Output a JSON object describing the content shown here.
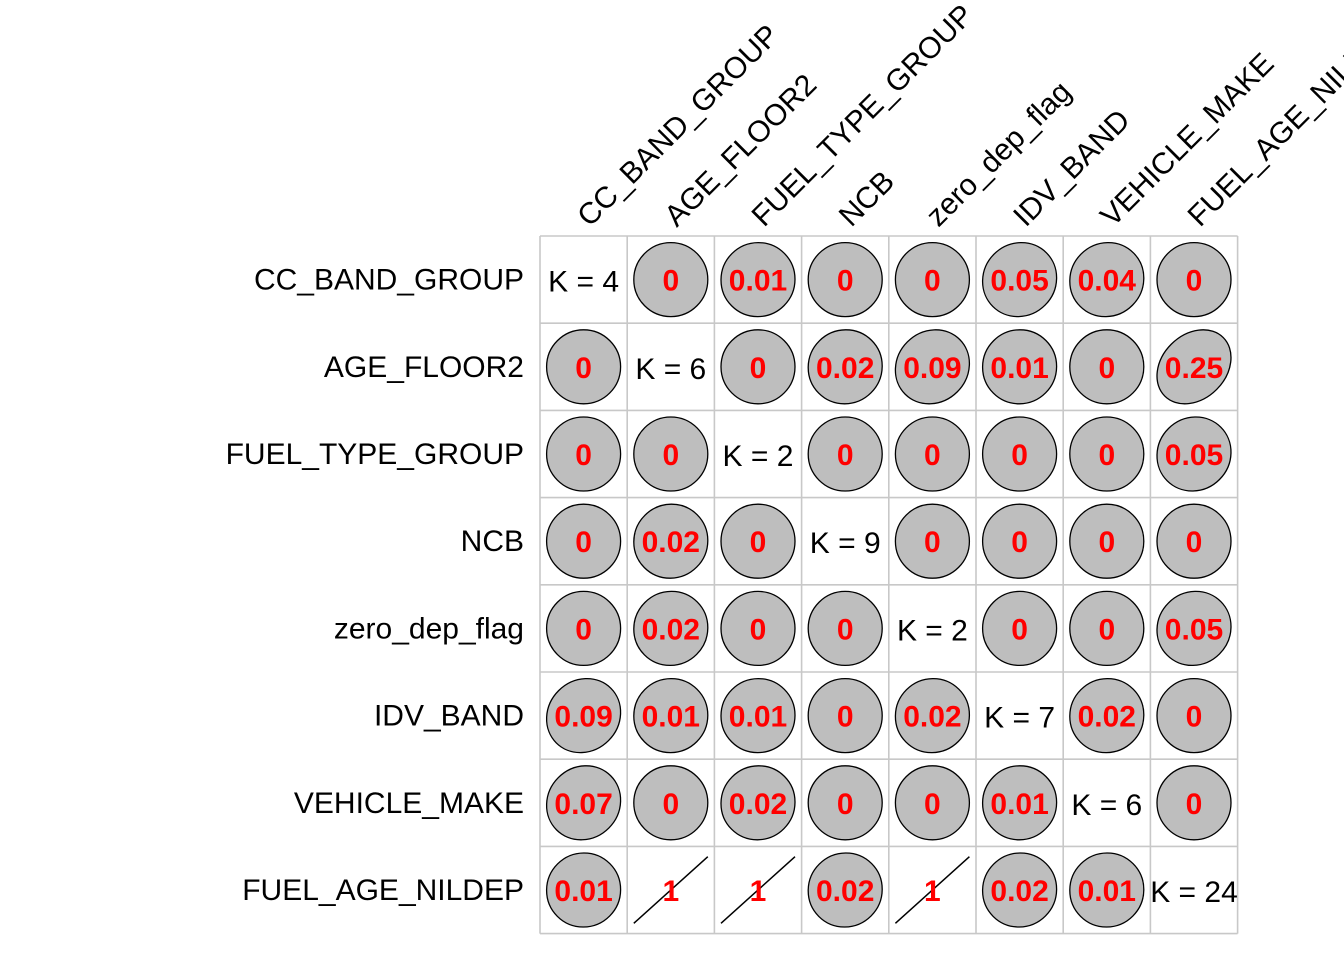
{
  "chart_data": {
    "type": "heatmap",
    "style": "corrplot-ellipse",
    "variables": [
      "CC_BAND_GROUP",
      "AGE_FLOOR2",
      "FUEL_TYPE_GROUP",
      "NCB",
      "zero_dep_flag",
      "IDV_BAND",
      "VEHICLE_MAKE",
      "FUEL_AGE_NILDEP"
    ],
    "column_labels": [
      "CC_BAND_GROUP",
      "AGE_FLOOR2",
      "FUEL_TYPE_GROUP",
      "NCB",
      "zero_dep_flag",
      "IDV_BAND",
      "VEHICLE_MAKE",
      "FUEL_AGE_NILDEP"
    ],
    "diagonal_labels": [
      "K = 4",
      "K = 6",
      "K = 2",
      "K = 9",
      "K = 2",
      "K = 7",
      "K = 6",
      "K = 24"
    ],
    "cell_labels": [
      [
        "",
        "0",
        "0.01",
        "0",
        "0",
        "0.05",
        "0.04",
        "0"
      ],
      [
        "0",
        "",
        "0",
        "0.02",
        "0.09",
        "0.01",
        "0",
        "0.25"
      ],
      [
        "0",
        "0",
        "",
        "0",
        "0",
        "0",
        "0",
        "0.05"
      ],
      [
        "0",
        "0.02",
        "0",
        "",
        "0",
        "0",
        "0",
        "0"
      ],
      [
        "0",
        "0.02",
        "0",
        "0",
        "",
        "0",
        "0",
        "0.05"
      ],
      [
        "0.09",
        "0.01",
        "0.01",
        "0",
        "0.02",
        "",
        "0.02",
        "0"
      ],
      [
        "0.07",
        "0",
        "0.02",
        "0",
        "0",
        "0.01",
        "",
        "0"
      ],
      [
        "0.01",
        "1",
        "1",
        "0.02",
        "1",
        "0.02",
        "0.01",
        ""
      ]
    ],
    "values": [
      [
        null,
        0,
        0.01,
        0,
        0,
        0.05,
        0.04,
        0
      ],
      [
        0,
        null,
        0,
        0.02,
        0.09,
        0.01,
        0,
        0.25
      ],
      [
        0,
        0,
        null,
        0,
        0,
        0,
        0,
        0.05
      ],
      [
        0,
        0.02,
        0,
        null,
        0,
        0,
        0,
        0
      ],
      [
        0,
        0.02,
        0,
        0,
        null,
        0,
        0,
        0.05
      ],
      [
        0.09,
        0.01,
        0.01,
        0,
        0.02,
        null,
        0.02,
        0
      ],
      [
        0.07,
        0,
        0.02,
        0,
        0,
        0.01,
        null,
        0
      ],
      [
        0.01,
        1,
        1,
        0.02,
        1,
        0.02,
        0.01,
        null
      ]
    ],
    "ellipse_fill": "#bebebe",
    "ellipse_stroke": "#000000",
    "value_label_color": "#ff0000",
    "grid_color": "#c8c8c8",
    "diagonal_label_color": "#000000"
  }
}
